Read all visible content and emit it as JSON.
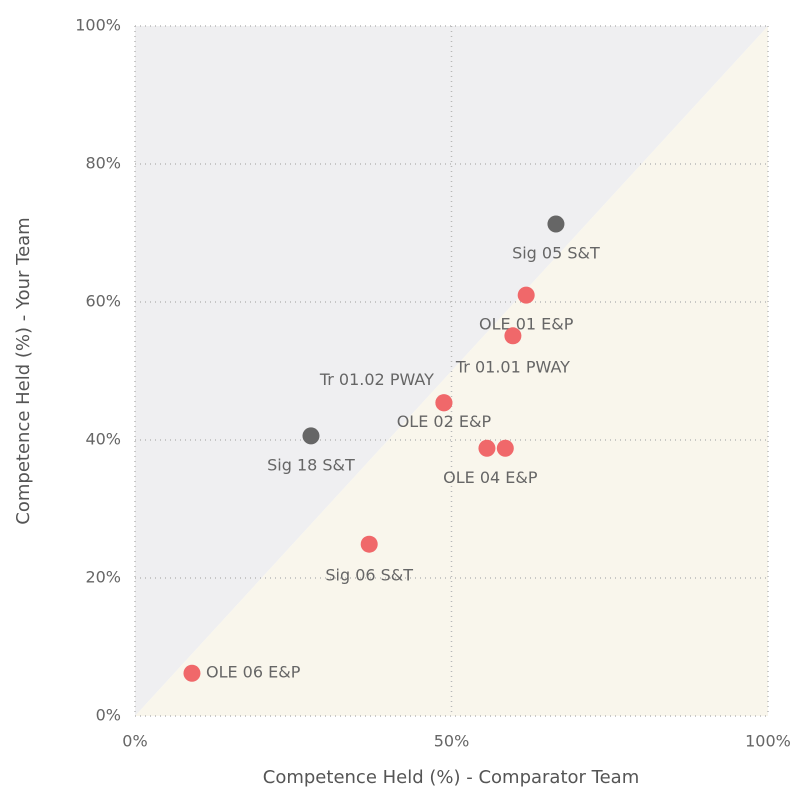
{
  "chart_data": {
    "type": "scatter",
    "x_label": "Competence Held (%) - Comparator Team",
    "y_label": "Competence Held (%) - Your Team",
    "labels": [
      "Sig 05 S&T",
      "OLE 01 E&P",
      "Tr 01.01 PWAY",
      "Tr 01.02 PWAY",
      "OLE 02 E&P",
      "OLE 04 E&P",
      null,
      "Sig 18 S&T",
      "Sig 06 S&T",
      "OLE 06 E&P"
    ],
    "x": [
      66.5,
      61.8,
      59.7,
      48.8,
      48.8,
      58.5,
      55.6,
      27.8,
      37.0,
      9.0
    ],
    "y": [
      71.3,
      61.0,
      55.1,
      45.4,
      45.4,
      38.8,
      38.8,
      40.6,
      24.9,
      6.2
    ],
    "colors": [
      "#666666",
      "#f0686a",
      "#f0686a",
      "#f0686a",
      "#f0686a",
      "#f0686a",
      "#f0686a",
      "#666666",
      "#f0686a",
      "#f0686a"
    ],
    "xlim": [
      0,
      100
    ],
    "ylim": [
      0,
      100
    ],
    "xticks": [
      {
        "value": 0,
        "label": "0%"
      },
      {
        "value": 50,
        "label": "50%"
      },
      {
        "value": 100,
        "label": "100%"
      }
    ],
    "yticks": [
      {
        "value": 0,
        "label": "0%"
      },
      {
        "value": 20,
        "label": "20%"
      },
      {
        "value": 40,
        "label": "40%"
      },
      {
        "value": 60,
        "label": "60%"
      },
      {
        "value": 80,
        "label": "80%"
      },
      {
        "value": 100,
        "label": "100%"
      }
    ],
    "grid": true
  }
}
